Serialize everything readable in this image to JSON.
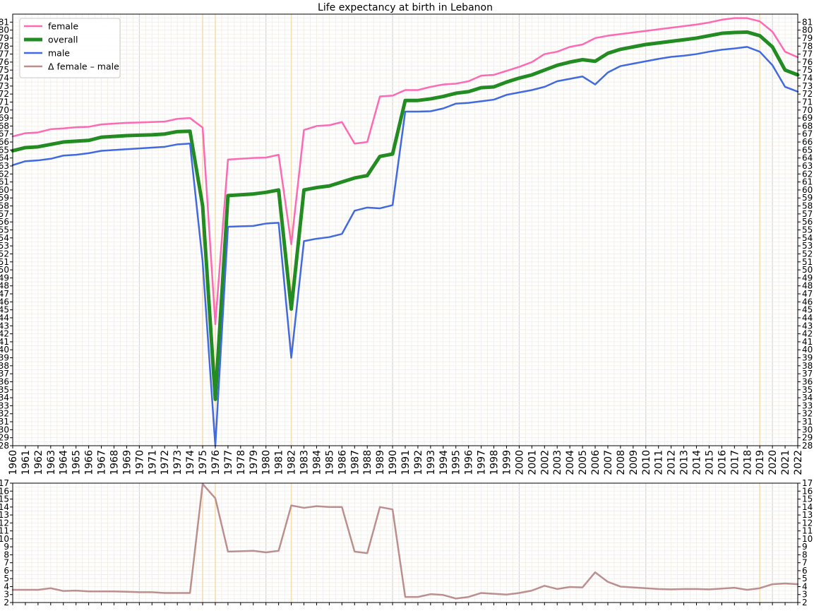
{
  "chart_data": [
    {
      "type": "line",
      "title": "Life expectancy at birth in Lebanon",
      "xlabel": "",
      "ylabel": "",
      "xlim": [
        1960,
        2022
      ],
      "ylim": [
        28,
        82
      ],
      "grid": true,
      "legend": "top-left",
      "highlight_years": [
        1975,
        1976,
        1982,
        2019
      ],
      "highlight_color": "#f5deb3",
      "x": [
        1960,
        1961,
        1962,
        1963,
        1964,
        1965,
        1966,
        1967,
        1968,
        1969,
        1970,
        1971,
        1972,
        1973,
        1974,
        1975,
        1976,
        1977,
        1978,
        1979,
        1980,
        1981,
        1982,
        1983,
        1984,
        1985,
        1986,
        1987,
        1988,
        1989,
        1990,
        1991,
        1992,
        1993,
        1994,
        1995,
        1996,
        1997,
        1998,
        1999,
        2000,
        2001,
        2002,
        2003,
        2004,
        2005,
        2006,
        2007,
        2008,
        2009,
        2010,
        2011,
        2012,
        2013,
        2014,
        2015,
        2016,
        2017,
        2018,
        2019,
        2020,
        2021,
        2022
      ],
      "series": [
        {
          "name": "female",
          "color": "#ff69b4",
          "values": [
            66.7,
            67.1,
            67.2,
            67.6,
            67.7,
            67.85,
            67.9,
            68.2,
            68.3,
            68.4,
            68.45,
            68.5,
            68.55,
            68.9,
            69.0,
            67.8,
            43.2,
            63.8,
            63.9,
            64.0,
            64.05,
            64.4,
            53.2,
            67.5,
            68.0,
            68.1,
            68.5,
            65.8,
            66.0,
            71.7,
            71.8,
            72.5,
            72.5,
            72.9,
            73.2,
            73.3,
            73.6,
            74.3,
            74.4,
            74.9,
            75.4,
            76.0,
            77.0,
            77.3,
            77.9,
            78.2,
            79.0,
            79.3,
            79.5,
            79.7,
            79.9,
            80.1,
            80.3,
            80.5,
            80.7,
            80.95,
            81.3,
            81.5,
            81.5,
            81.1,
            79.8,
            77.3,
            76.6
          ]
        },
        {
          "name": "overall",
          "color": "#228b22",
          "values": [
            64.9,
            65.3,
            65.4,
            65.7,
            66.0,
            66.1,
            66.2,
            66.6,
            66.7,
            66.8,
            66.85,
            66.9,
            67.0,
            67.3,
            67.35,
            58.0,
            33.8,
            59.3,
            59.4,
            59.5,
            59.7,
            60.0,
            45.1,
            60.0,
            60.3,
            60.5,
            61.0,
            61.5,
            61.8,
            64.2,
            64.5,
            71.2,
            71.2,
            71.4,
            71.7,
            72.1,
            72.3,
            72.8,
            72.9,
            73.5,
            74.0,
            74.4,
            75.0,
            75.6,
            76.0,
            76.3,
            76.1,
            77.1,
            77.6,
            77.9,
            78.2,
            78.4,
            78.6,
            78.8,
            79.0,
            79.3,
            79.6,
            79.7,
            79.75,
            79.3,
            77.9,
            75.0,
            74.4
          ]
        },
        {
          "name": "male",
          "color": "#4169e1",
          "values": [
            63.1,
            63.6,
            63.7,
            63.9,
            64.3,
            64.4,
            64.6,
            64.9,
            65.0,
            65.1,
            65.2,
            65.3,
            65.4,
            65.7,
            65.8,
            51.0,
            28.0,
            55.4,
            55.45,
            55.5,
            55.8,
            55.9,
            39.0,
            53.6,
            53.9,
            54.1,
            54.5,
            57.4,
            57.8,
            57.7,
            58.1,
            69.8,
            69.8,
            69.85,
            70.2,
            70.8,
            70.9,
            71.1,
            71.3,
            71.9,
            72.2,
            72.5,
            72.9,
            73.6,
            73.9,
            74.2,
            73.2,
            74.7,
            75.5,
            75.8,
            76.1,
            76.4,
            76.65,
            76.8,
            77.0,
            77.3,
            77.55,
            77.7,
            77.9,
            77.3,
            75.6,
            72.9,
            72.3
          ]
        }
      ]
    },
    {
      "type": "line",
      "title": "",
      "xlabel": "",
      "ylabel": "",
      "xlim": [
        1960,
        2022
      ],
      "ylim": [
        2,
        17
      ],
      "grid": true,
      "highlight_years": [
        1975,
        1976,
        1982,
        2019
      ],
      "highlight_color": "#f5deb3",
      "x": [
        1960,
        1961,
        1962,
        1963,
        1964,
        1965,
        1966,
        1967,
        1968,
        1969,
        1970,
        1971,
        1972,
        1973,
        1974,
        1975,
        1976,
        1977,
        1978,
        1979,
        1980,
        1981,
        1982,
        1983,
        1984,
        1985,
        1986,
        1987,
        1988,
        1989,
        1990,
        1991,
        1992,
        1993,
        1994,
        1995,
        1996,
        1997,
        1998,
        1999,
        2000,
        2001,
        2002,
        2003,
        2004,
        2005,
        2006,
        2007,
        2008,
        2009,
        2010,
        2011,
        2012,
        2013,
        2014,
        2015,
        2016,
        2017,
        2018,
        2019,
        2020,
        2021,
        2022
      ],
      "series": [
        {
          "name": "Δ female – male",
          "color": "#bc8f8f",
          "values": [
            3.6,
            3.6,
            3.6,
            3.8,
            3.45,
            3.5,
            3.4,
            3.4,
            3.4,
            3.35,
            3.3,
            3.3,
            3.2,
            3.2,
            3.2,
            16.9,
            15.1,
            8.4,
            8.45,
            8.5,
            8.3,
            8.5,
            14.2,
            13.9,
            14.1,
            14.0,
            14.0,
            8.4,
            8.2,
            14.0,
            13.7,
            2.7,
            2.7,
            3.05,
            2.95,
            2.5,
            2.7,
            3.2,
            3.1,
            3.0,
            3.2,
            3.5,
            4.1,
            3.7,
            3.95,
            3.9,
            5.8,
            4.6,
            4.0,
            3.9,
            3.8,
            3.7,
            3.65,
            3.7,
            3.7,
            3.65,
            3.75,
            3.85,
            3.6,
            3.8,
            4.3,
            4.4,
            4.3
          ]
        }
      ]
    }
  ]
}
